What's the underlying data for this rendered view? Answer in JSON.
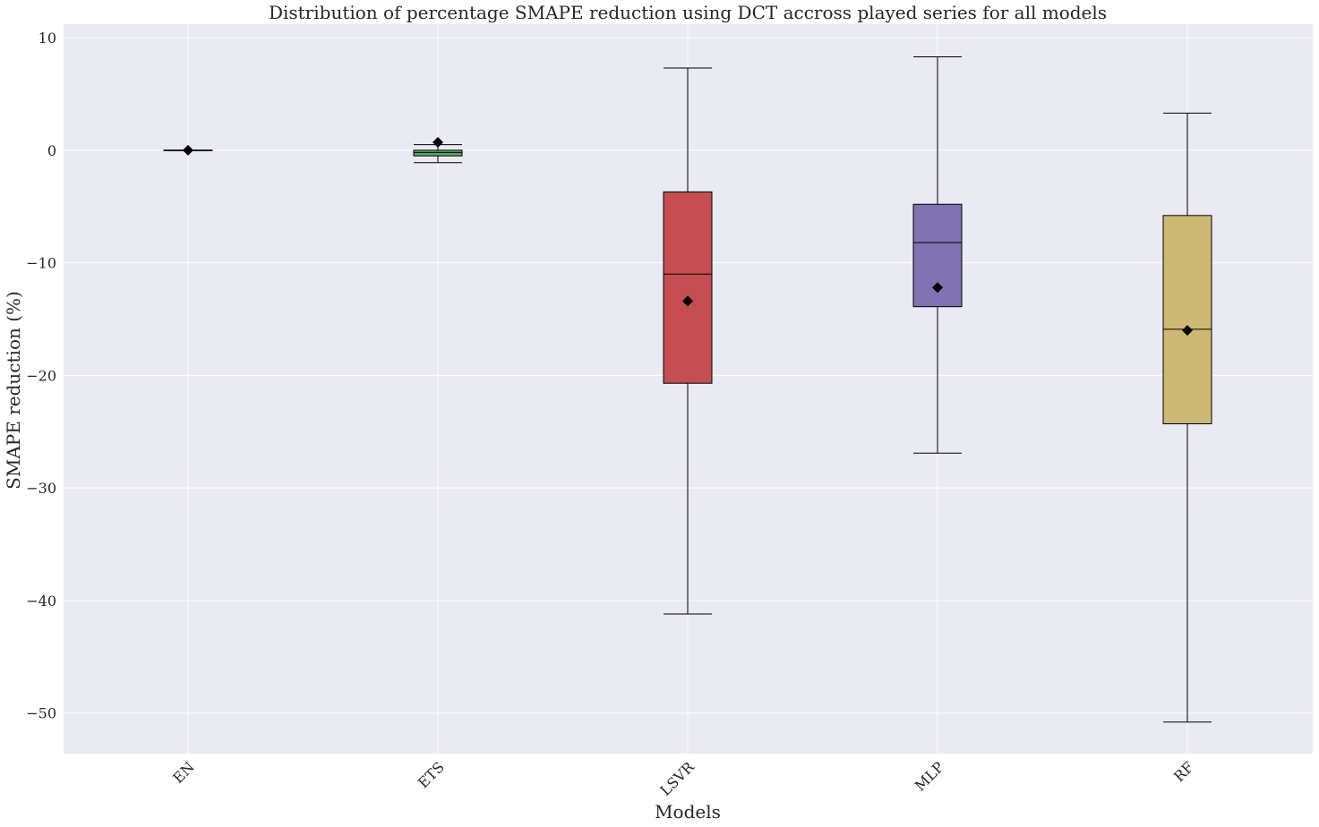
{
  "chart_data": {
    "type": "box",
    "title": "Distribution of percentage SMAPE reduction using DCT accross played series for all models",
    "xlabel": "Models",
    "ylabel": "SMAPE reduction (%)",
    "ylim": [
      -53.6,
      11.2
    ],
    "yticks": [
      10,
      0,
      -10,
      -20,
      -30,
      -40,
      -50
    ],
    "ytick_labels": [
      "10",
      "0",
      "−10",
      "−20",
      "−30",
      "−40",
      "−50"
    ],
    "grid": true,
    "categories": [
      "EN",
      "ETS",
      "LSVR",
      "MLP",
      "RF"
    ],
    "boxes": [
      {
        "name": "EN",
        "whisker_low": 0.0,
        "q1": 0.0,
        "median": 0.0,
        "q3": 0.0,
        "whisker_high": 0.0,
        "mean": 0.0,
        "color": "#4c72b0"
      },
      {
        "name": "ETS",
        "whisker_low": -1.1,
        "q1": -0.5,
        "median": -0.2,
        "q3": 0.0,
        "whisker_high": 0.5,
        "mean": 0.7,
        "color": "#55a868"
      },
      {
        "name": "LSVR",
        "whisker_low": -41.2,
        "q1": -20.7,
        "median": -11.0,
        "q3": -3.7,
        "whisker_high": 7.3,
        "mean": -13.4,
        "color": "#c44e52"
      },
      {
        "name": "MLP",
        "whisker_low": -26.9,
        "q1": -13.9,
        "median": -8.2,
        "q3": -4.8,
        "whisker_high": 8.3,
        "mean": -12.2,
        "color": "#8172b2"
      },
      {
        "name": "RF",
        "whisker_low": -50.8,
        "q1": -24.3,
        "median": -15.9,
        "q3": -5.8,
        "whisker_high": 3.3,
        "mean": -16.0,
        "color": "#ccb974"
      }
    ],
    "background_color": "#eaeaf2",
    "grid_color": "#ffffff"
  }
}
